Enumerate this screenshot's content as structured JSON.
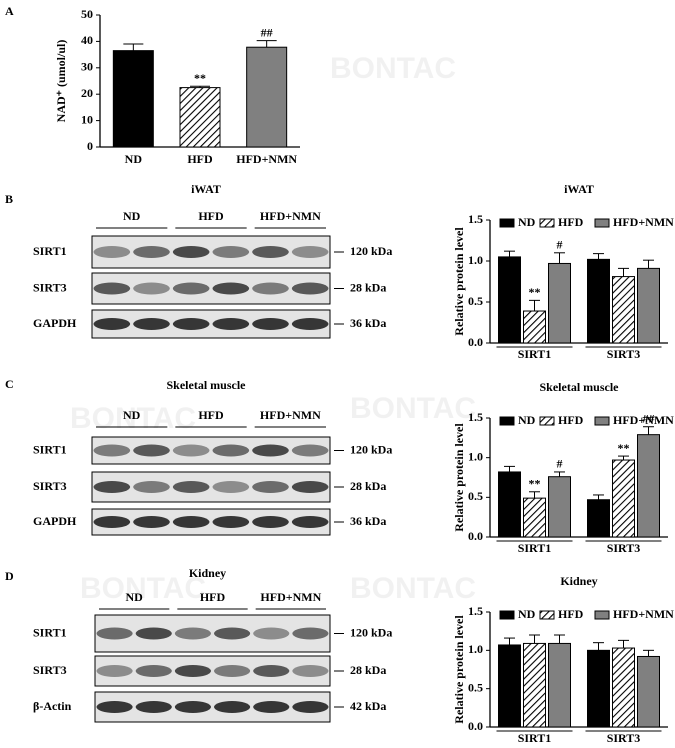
{
  "watermark": "BONTAC",
  "panel_labels": [
    "A",
    "B",
    "C",
    "D"
  ],
  "blots": [
    {
      "title": "iWAT",
      "groups": [
        "ND",
        "HFD",
        "HFD+NMN"
      ],
      "rows": [
        {
          "label": "SIRT1",
          "size": "120 kDa"
        },
        {
          "label": "SIRT3",
          "size": "28 kDa"
        },
        {
          "label": "GAPDH",
          "size": "36 kDa"
        }
      ]
    },
    {
      "title": "Skeletal muscle",
      "groups": [
        "ND",
        "HFD",
        "HFD+NMN"
      ],
      "rows": [
        {
          "label": "SIRT1",
          "size": "120 kDa"
        },
        {
          "label": "SIRT3",
          "size": "28 kDa"
        },
        {
          "label": "GAPDH",
          "size": "36 kDa"
        }
      ]
    },
    {
      "title": "Kidney",
      "groups": [
        "ND",
        "HFD",
        "HFD+NMN"
      ],
      "rows": [
        {
          "label": "SIRT1",
          "size": "120 kDa"
        },
        {
          "label": "SIRT3",
          "size": "28 kDa"
        },
        {
          "label": "β-Actin",
          "size": "42 kDa"
        }
      ]
    }
  ],
  "chart_data": [
    {
      "type": "bar",
      "ylabel": "NAD⁺ (umol/ul)",
      "categories": [
        "ND",
        "HFD",
        "HFD+NMN"
      ],
      "values": [
        36.5,
        22.5,
        37.8
      ],
      "errors": [
        2.5,
        0.5,
        2.5
      ],
      "value_annotations": [
        null,
        "**",
        "##"
      ],
      "colors": [
        "#000000",
        "#ffffff",
        "#808080"
      ],
      "hatch": [
        false,
        true,
        false
      ],
      "ylim": [
        0,
        50
      ],
      "yticks": [
        0,
        10,
        20,
        30,
        40,
        50
      ]
    },
    {
      "type": "grouped-bar",
      "title": "iWAT",
      "ylabel": "Relative protein level",
      "categories": [
        "SIRT1",
        "SIRT3"
      ],
      "ylim": [
        0,
        1.5
      ],
      "yticks": [
        {
          "value": 0,
          "label": "0.0"
        },
        0.5,
        {
          "value": 1,
          "label": "1.0"
        },
        1.5
      ],
      "legend": "top",
      "series": [
        {
          "name": "ND",
          "color": "#000000",
          "hatch": false,
          "values": [
            1.05,
            1.02
          ],
          "errors": [
            0.07,
            0.07
          ],
          "annotations": [
            null,
            null
          ]
        },
        {
          "name": "HFD",
          "color": "#ffffff",
          "hatch": true,
          "values": [
            0.39,
            0.81
          ],
          "errors": [
            0.13,
            0.1
          ],
          "annotations": [
            "**",
            null
          ]
        },
        {
          "name": "HFD+NMN",
          "color": "#808080",
          "hatch": false,
          "values": [
            0.97,
            0.91
          ],
          "errors": [
            0.13,
            0.1
          ],
          "annotations": [
            "#",
            null
          ]
        }
      ]
    },
    {
      "type": "grouped-bar",
      "title": "Skeletal muscle",
      "ylabel": "Relative protein level",
      "categories": [
        "SIRT1",
        "SIRT3"
      ],
      "ylim": [
        0,
        1.5
      ],
      "yticks": [
        {
          "value": 0,
          "label": "0.0"
        },
        0.5,
        {
          "value": 1,
          "label": "1.0"
        },
        1.5
      ],
      "legend": "top",
      "series": [
        {
          "name": "ND",
          "color": "#000000",
          "hatch": false,
          "values": [
            0.82,
            0.47
          ],
          "errors": [
            0.07,
            0.06
          ],
          "annotations": [
            null,
            null
          ]
        },
        {
          "name": "HFD",
          "color": "#ffffff",
          "hatch": true,
          "values": [
            0.49,
            0.97
          ],
          "errors": [
            0.08,
            0.05
          ],
          "annotations": [
            "**",
            "**"
          ]
        },
        {
          "name": "HFD+NMN",
          "color": "#808080",
          "hatch": false,
          "values": [
            0.76,
            1.29
          ],
          "errors": [
            0.06,
            0.1
          ],
          "annotations": [
            "#",
            "##"
          ]
        }
      ]
    },
    {
      "type": "grouped-bar",
      "title": "Kidney",
      "ylabel": "Relative protein level",
      "categories": [
        "SIRT1",
        "SIRT3"
      ],
      "ylim": [
        0,
        1.5
      ],
      "yticks": [
        {
          "value": 0,
          "label": "0.0"
        },
        0.5,
        {
          "value": 1,
          "label": "1.0"
        },
        1.5
      ],
      "legend": "top",
      "series": [
        {
          "name": "ND",
          "color": "#000000",
          "hatch": false,
          "values": [
            1.07,
            1.0
          ],
          "errors": [
            0.09,
            0.1
          ],
          "annotations": [
            null,
            null
          ]
        },
        {
          "name": "HFD",
          "color": "#ffffff",
          "hatch": true,
          "values": [
            1.09,
            1.03
          ],
          "errors": [
            0.11,
            0.1
          ],
          "annotations": [
            null,
            null
          ]
        },
        {
          "name": "HFD+NMN",
          "color": "#808080",
          "hatch": false,
          "values": [
            1.09,
            0.92
          ],
          "errors": [
            0.11,
            0.08
          ],
          "annotations": [
            null,
            null
          ]
        }
      ]
    }
  ]
}
